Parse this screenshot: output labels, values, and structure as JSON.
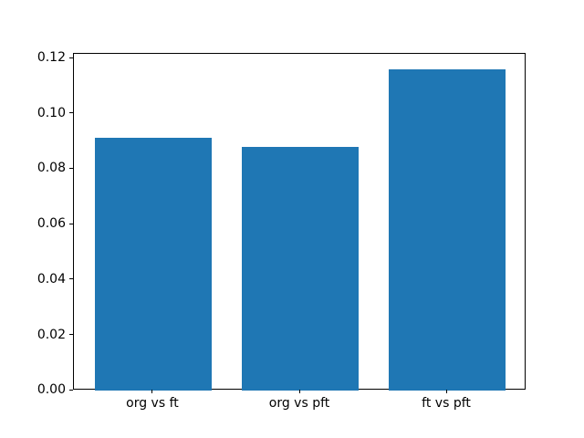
{
  "chart_data": {
    "type": "bar",
    "categories": [
      "org vs ft",
      "org vs pft",
      "ft vs pft"
    ],
    "values": [
      0.0915,
      0.088,
      0.116
    ],
    "title": "",
    "xlabel": "",
    "ylabel": "",
    "ylim": [
      0,
      0.1218
    ],
    "xlim": [
      -0.54,
      2.54
    ],
    "yticks": [
      0.0,
      0.02,
      0.04,
      0.06,
      0.08,
      0.1,
      0.12
    ],
    "ytick_labels": [
      "0.00",
      "0.02",
      "0.04",
      "0.06",
      "0.08",
      "0.10",
      "0.12"
    ],
    "bar_width": 0.8,
    "bar_color": "#1f77b4",
    "grid": false,
    "legend": null
  }
}
